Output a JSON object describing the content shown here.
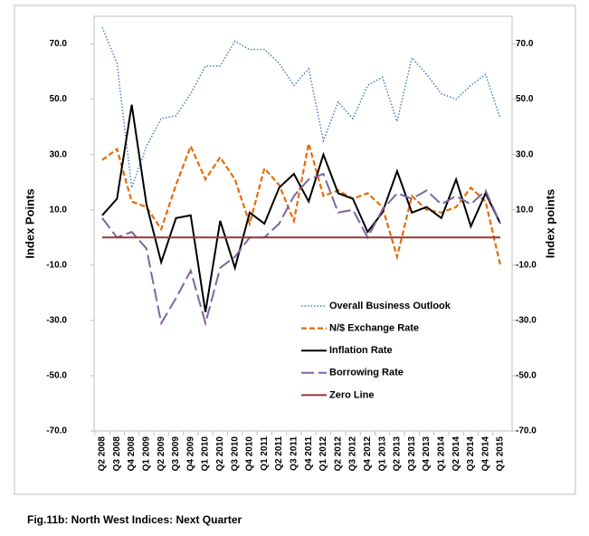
{
  "chart_data": {
    "type": "line",
    "caption": "Fig.11b: North West  Indices: Next Quarter",
    "y_label": "Index Points",
    "y2_label": "Index points",
    "categories": [
      "Q2 2008",
      "Q3 2008",
      "Q4 2008",
      "Q1 2009",
      "Q2 2009",
      "Q3 2009",
      "Q4 2009",
      "Q1 2010",
      "Q2 2010",
      "Q3 2010",
      "Q4 2010",
      "Q1 2011",
      "Q2 2011",
      "Q3 2011",
      "Q4 2011",
      "Q1 2012",
      "Q2 2012",
      "Q3 2012",
      "Q4 2012",
      "Q1 2013",
      "Q2 2013",
      "Q3 2013",
      "Q4 2013",
      "Q1 2014",
      "Q2 2014",
      "Q3 2014",
      "Q4 2014",
      "Q1 2015"
    ],
    "series": [
      {
        "name": "Overall Business Outlook",
        "color": "#4a7ebb",
        "line_style": "dotted",
        "values": [
          76,
          63,
          18,
          33,
          43,
          44,
          52,
          62,
          62,
          71,
          68,
          68,
          63,
          55,
          61,
          35,
          49,
          43,
          55,
          58,
          42,
          65,
          59,
          52,
          50,
          55,
          59,
          43
        ]
      },
      {
        "name": "N/$ Exchange Rate",
        "color": "#e46c0a",
        "line_style": "dashed",
        "values": [
          28,
          32,
          13,
          11,
          3,
          19,
          33,
          21,
          29,
          21,
          5,
          25,
          19,
          6,
          34,
          15,
          17,
          14,
          16,
          11,
          -7,
          15,
          10,
          9,
          11,
          18,
          13,
          -10
        ]
      },
      {
        "name": "Inflation Rate",
        "color": "#000000",
        "line_style": "solid",
        "values": [
          8,
          14,
          48,
          12,
          -9,
          7,
          8,
          -27,
          6,
          -11,
          9,
          5,
          18,
          23,
          13,
          30,
          16,
          14,
          2,
          9,
          24,
          9,
          11,
          7,
          21,
          4,
          16,
          5
        ]
      },
      {
        "name": "Borrowing Rate",
        "color": "#8064a2",
        "line_style": "longdash",
        "values": [
          7,
          0,
          2,
          -4,
          -31,
          -22,
          -12,
          -31,
          -11,
          -7,
          0,
          0,
          5,
          15,
          21,
          23,
          9,
          10,
          0,
          10,
          16,
          14,
          17,
          12,
          15,
          12,
          17,
          5
        ]
      },
      {
        "name": "Zero Line",
        "color": "#953735",
        "line_style": "solid",
        "values": [
          0,
          0,
          0,
          0,
          0,
          0,
          0,
          0,
          0,
          0,
          0,
          0,
          0,
          0,
          0,
          0,
          0,
          0,
          0,
          0,
          0,
          0,
          0,
          0,
          0,
          0,
          0,
          0
        ]
      }
    ],
    "ylim": [
      -70,
      80
    ],
    "yticks": [
      {
        "value": -70,
        "label": "-70.0"
      },
      {
        "value": -50,
        "label": "-50.0"
      },
      {
        "value": -30,
        "label": "-30.0"
      },
      {
        "value": -10,
        "label": "-10.0"
      },
      {
        "value": 10,
        "label": "10.0"
      },
      {
        "value": 30,
        "label": "30.0"
      },
      {
        "value": 50,
        "label": "50.0"
      },
      {
        "value": 70,
        "label": "70.0"
      }
    ],
    "y2lim": [
      -70,
      80
    ],
    "y2ticks": [
      {
        "value": -70,
        "label": "-70.0"
      },
      {
        "value": -50,
        "label": "-50.0"
      },
      {
        "value": -30,
        "label": "-30.0"
      },
      {
        "value": -10,
        "label": "-10.0"
      },
      {
        "value": 10,
        "label": "10.0"
      },
      {
        "value": 30,
        "label": "30.0"
      },
      {
        "value": 50,
        "label": "50.0"
      },
      {
        "value": 70,
        "label": "70.0"
      }
    ],
    "grid": false,
    "legend": "lower right"
  }
}
